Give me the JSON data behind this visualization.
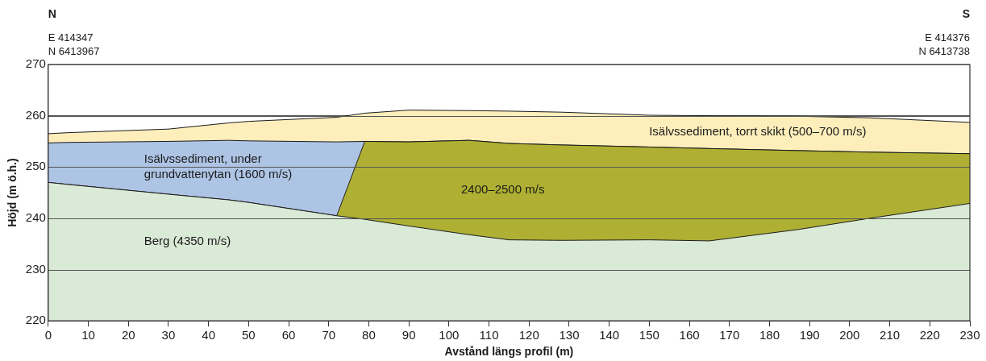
{
  "chart_data": {
    "type": "area",
    "xlabel": "Avstånd längs profil (m)",
    "ylabel": "Höjd (m ö.h.)",
    "x": [
      0,
      5,
      30,
      45,
      50,
      72,
      79,
      90,
      105,
      115,
      128,
      150,
      165,
      187,
      205,
      230
    ],
    "series": [
      {
        "name": "Berg (4350 m/s)",
        "color": "#d9ead6",
        "values": [
          247,
          246.6,
          244.7,
          243.6,
          243.1,
          240.5,
          239.8,
          238.5,
          236.8,
          235.8,
          235.7,
          235.8,
          235.6,
          237.8,
          240,
          242.9
        ]
      },
      {
        "name": "2400–2500 m/s",
        "color": "#afb033",
        "values": [
          247,
          246.6,
          244.7,
          243.6,
          243.1,
          240.5,
          255,
          254.9,
          255.2,
          254.6,
          254.3,
          253.9,
          253.6,
          253.2,
          252.9,
          252.6
        ]
      },
      {
        "name": "Isälvssediment, under grundvattenytan (1600 m/s)",
        "color": "#aec4e5",
        "values": [
          254.7,
          254.8,
          255,
          255.2,
          255.1,
          254.9,
          255,
          254.9,
          255.2,
          254.6,
          254.3,
          253.9,
          253.6,
          253.2,
          252.9,
          252.6
        ]
      },
      {
        "name": "Isälvssediment, torrt skikt (500–700 m/s)",
        "color": "#fdeebb",
        "values": [
          256.5,
          256.7,
          257.4,
          258.6,
          258.9,
          259.7,
          260.5,
          261.1,
          261,
          260.9,
          260.7,
          260.1,
          260,
          259.9,
          259.6,
          258.7
        ]
      }
    ],
    "xlim": [
      0,
      230
    ],
    "xticks": [
      0,
      10,
      20,
      30,
      40,
      50,
      60,
      70,
      80,
      90,
      100,
      110,
      120,
      130,
      140,
      150,
      160,
      170,
      180,
      190,
      200,
      210,
      220,
      230
    ],
    "ylim": [
      220,
      270
    ],
    "yticks": [
      220,
      230,
      240,
      250,
      260,
      270
    ],
    "grid": "y",
    "line_style": "solid",
    "annotations": [
      "N",
      "E 414347",
      "N 6413967",
      "S",
      "E 414376",
      "N 6413738"
    ]
  }
}
